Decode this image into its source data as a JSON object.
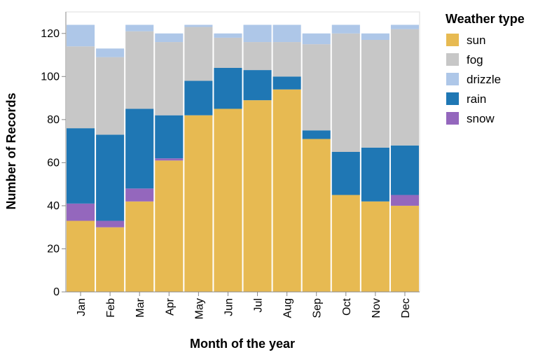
{
  "chart_data": {
    "type": "bar",
    "stacked": true,
    "categories": [
      "Jan",
      "Feb",
      "Mar",
      "Apr",
      "May",
      "Jun",
      "Jul",
      "Aug",
      "Sep",
      "Oct",
      "Nov",
      "Dec"
    ],
    "series": [
      {
        "name": "sun",
        "color": "#e7ba52",
        "values": [
          33,
          30,
          42,
          61,
          82,
          85,
          89,
          94,
          71,
          45,
          42,
          40
        ]
      },
      {
        "name": "snow",
        "color": "#9467bd",
        "values": [
          8,
          3,
          6,
          1,
          0,
          0,
          0,
          0,
          0,
          0,
          0,
          5
        ]
      },
      {
        "name": "rain",
        "color": "#1f77b4",
        "values": [
          35,
          40,
          37,
          20,
          16,
          19,
          14,
          6,
          4,
          20,
          25,
          23
        ]
      },
      {
        "name": "fog",
        "color": "#c7c7c7",
        "values": [
          38,
          36,
          36,
          34,
          25,
          14,
          13,
          16,
          40,
          55,
          50,
          54
        ]
      },
      {
        "name": "drizzle",
        "color": "#aec7e8",
        "values": [
          10,
          4,
          3,
          4,
          1,
          2,
          8,
          8,
          5,
          4,
          3,
          2
        ]
      }
    ],
    "legend": {
      "title": "Weather type",
      "order": [
        "sun",
        "fog",
        "drizzle",
        "rain",
        "snow"
      ],
      "position": "right"
    },
    "xlabel": "Month of the year",
    "ylabel": "Number of Records",
    "ylim": [
      0,
      130
    ],
    "yticks": [
      0,
      20,
      40,
      60,
      80,
      100,
      120
    ],
    "grid": false
  }
}
